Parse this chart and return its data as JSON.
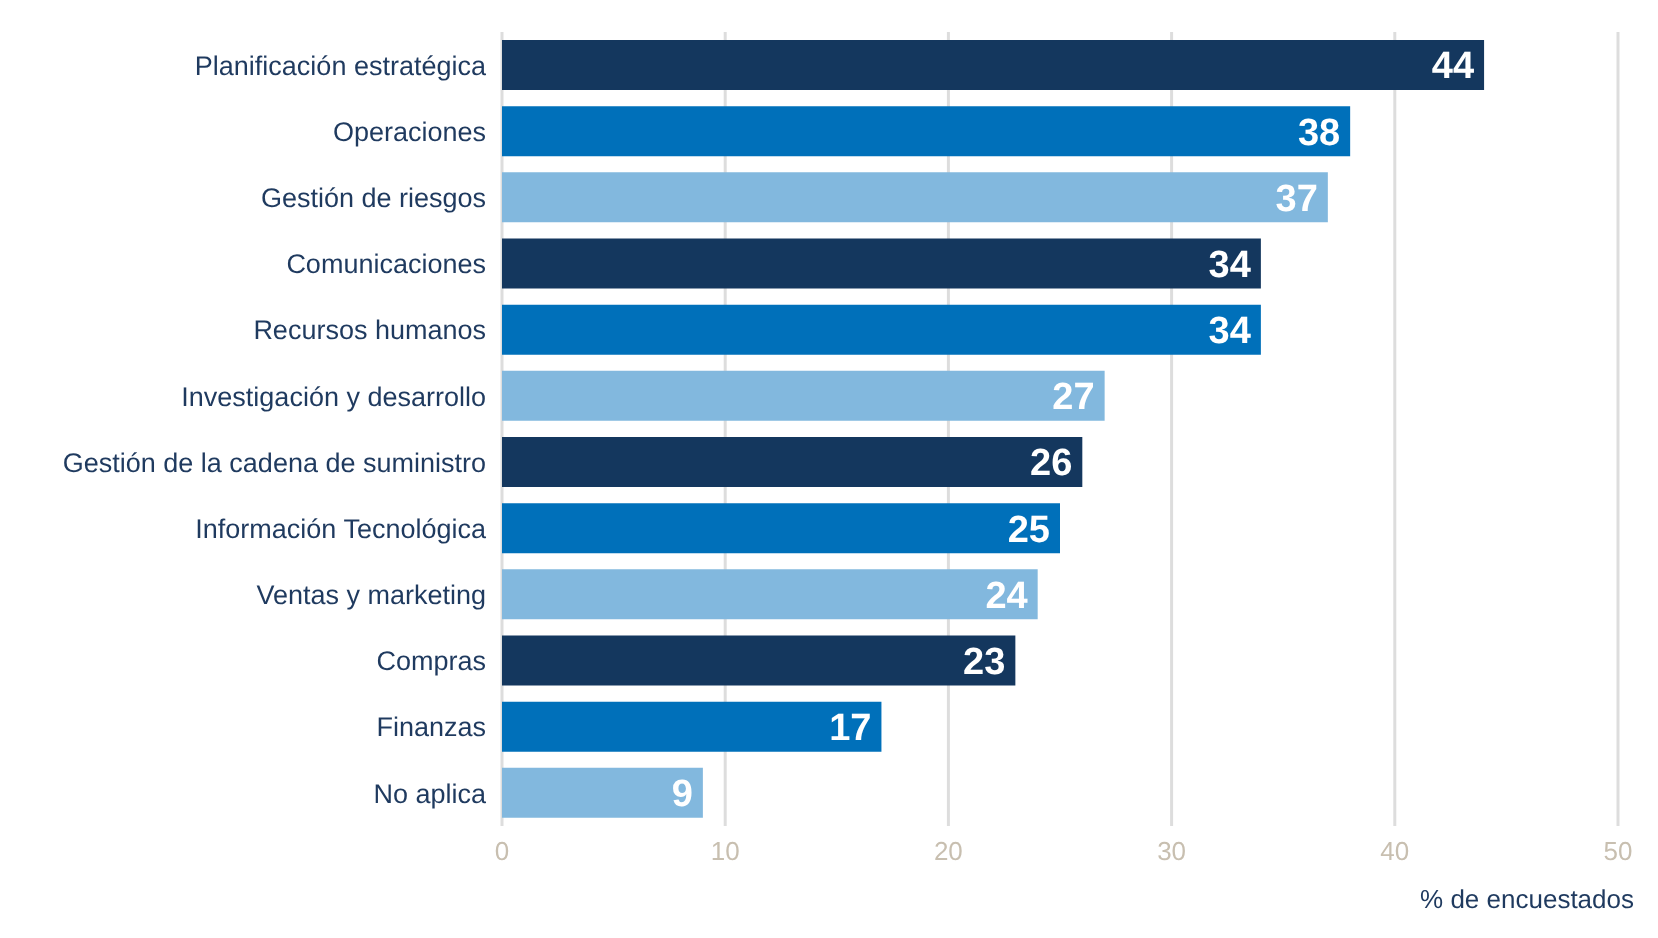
{
  "chart_data": {
    "type": "bar",
    "orientation": "horizontal",
    "categories": [
      "Planificación estratégica",
      "Operaciones",
      "Gestión de riesgos",
      "Comunicaciones",
      "Recursos humanos",
      "Investigación y desarrollo",
      "Gestión de la cadena de suministro",
      "Información Tecnológica",
      "Ventas y marketing",
      "Compras",
      "Finanzas",
      "No aplica"
    ],
    "values": [
      44,
      38,
      37,
      34,
      34,
      27,
      26,
      25,
      24,
      23,
      17,
      9
    ],
    "colors": [
      "#14375e",
      "#0070ba",
      "#82b8de",
      "#14375e",
      "#0070ba",
      "#82b8de",
      "#14375e",
      "#0070ba",
      "#82b8de",
      "#14375e",
      "#0070ba",
      "#82b8de"
    ],
    "xlim": [
      0,
      50
    ],
    "xticks": [
      0,
      10,
      20,
      30,
      40,
      50
    ],
    "xlabel": "% de encuestados",
    "grid": "x",
    "data_labels": true
  }
}
